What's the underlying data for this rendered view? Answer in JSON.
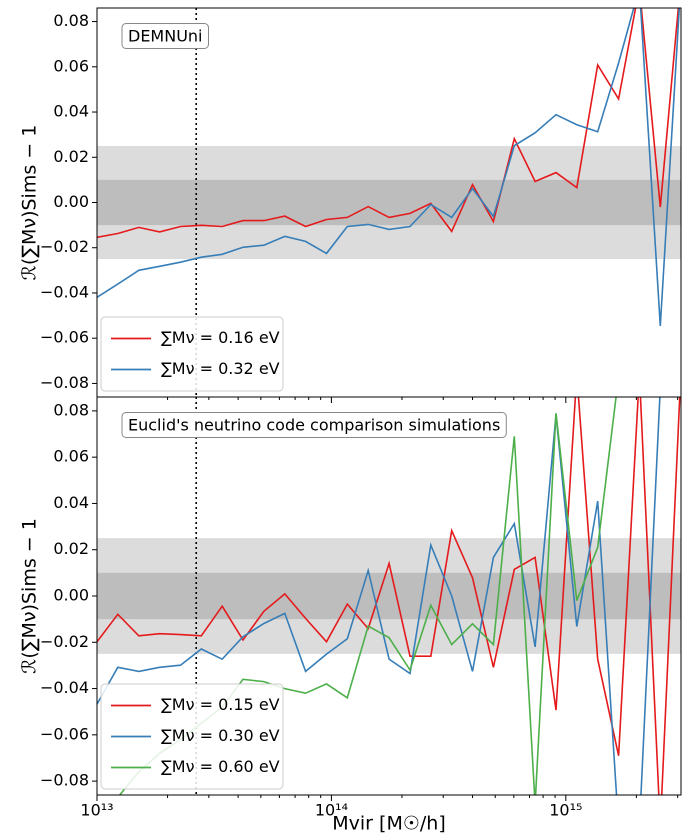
{
  "chart_data": [
    {
      "type": "line",
      "annotation": "DEMNUni",
      "ylabel": "ℛ(∑Mν)Sims − 1",
      "x": [
        10000000000000.0,
        12270000000000.0,
        15070000000000.0,
        18490000000000.0,
        22700000000000.0,
        27860000000000.0,
        34200000000000.0,
        41980000000000.0,
        51520000000000.0,
        63240000000000.0,
        77620000000000.0,
        95280000000000.0,
        116900000000000.0,
        143500000000000.0,
        176200000000000.0,
        216300000000000.0,
        265500000000000.0,
        325800000000000.0,
        399900000000000.0,
        490900000000000.0,
        602600000000000.0,
        739600000000000.0,
        907800000000000.0,
        1114000000000000.0,
        1368000000000000.0,
        1679000000000000.0,
        2061000000000000.0,
        2530000000000000.0,
        3105000000000000.0
      ],
      "series": [
        {
          "name": "∑Mν = 0.16 eV",
          "color": "#e41a1c",
          "values": [
            -0.0154,
            -0.0137,
            -0.011,
            -0.013,
            -0.0106,
            -0.0101,
            -0.0106,
            -0.008,
            -0.008,
            -0.006,
            -0.0106,
            -0.0075,
            -0.0066,
            -0.0018,
            -0.0066,
            -0.0048,
            -0.0004,
            -0.0128,
            0.0079,
            -0.0084,
            0.0282,
            0.0093,
            0.0132,
            0.0066,
            0.0608,
            0.0458,
            0.095,
            -0.002,
            0.1
          ]
        },
        {
          "name": "∑Mν = 0.32 eV",
          "color": "#377eb8",
          "values": [
            -0.0419,
            -0.0361,
            -0.03,
            -0.0282,
            -0.0264,
            -0.0242,
            -0.0229,
            -0.0198,
            -0.0189,
            -0.015,
            -0.0172,
            -0.0225,
            -0.0106,
            -0.0097,
            -0.0119,
            -0.0106,
            -0.0009,
            -0.0066,
            0.0062,
            -0.0062,
            0.0251,
            0.0308,
            0.0388,
            0.0344,
            0.0313,
            0.0617,
            0.095,
            -0.0546,
            0.1
          ]
        }
      ],
      "xlim": [
        10000000000000.0,
        3100000000000000.0
      ],
      "xscale": "log",
      "ylim": [
        -0.086,
        0.086
      ],
      "yticks": [
        {
          "value": -0.08,
          "label": "−0.08"
        },
        {
          "value": -0.06,
          "label": "−0.06"
        },
        {
          "value": -0.04,
          "label": "−0.04"
        },
        {
          "value": -0.02,
          "label": "−0.02"
        },
        {
          "value": 0,
          "label": "0.00"
        },
        {
          "value": 0.02,
          "label": "0.02"
        },
        {
          "value": 0.04,
          "label": "0.04"
        },
        {
          "value": 0.06,
          "label": "0.06"
        },
        {
          "value": 0.08,
          "label": "0.08"
        }
      ],
      "bands": [
        {
          "ylim": [
            -0.025,
            0.025
          ],
          "color": "#dcdcdc"
        },
        {
          "ylim": [
            -0.01,
            0.01
          ],
          "color": "#bdbdbd"
        }
      ],
      "vline": 26500000000000.0,
      "legend": "lower left"
    },
    {
      "type": "line",
      "annotation": "Euclid's neutrino code comparison simulations",
      "ylabel": "ℛ(∑Mν)Sims − 1",
      "xlabel": "Mvir [M☉/h]",
      "x": [
        10000000000000.0,
        12270000000000.0,
        15070000000000.0,
        18490000000000.0,
        22700000000000.0,
        27860000000000.0,
        34200000000000.0,
        41980000000000.0,
        51520000000000.0,
        63240000000000.0,
        77620000000000.0,
        95280000000000.0,
        116900000000000.0,
        143500000000000.0,
        176200000000000.0,
        216300000000000.0,
        265500000000000.0,
        325800000000000.0,
        399900000000000.0,
        490900000000000.0,
        602600000000000.0,
        739600000000000.0,
        907800000000000.0,
        1114000000000000.0,
        1368000000000000.0,
        1679000000000000.0,
        2061000000000000.0,
        2530000000000000.0,
        3105000000000000.0
      ],
      "series": [
        {
          "name": "∑Mν = 0.15 eV",
          "color": "#e41a1c",
          "values": [
            -0.0198,
            -0.0079,
            -0.0172,
            -0.0163,
            -0.0167,
            -0.0172,
            -0.0044,
            -0.019,
            -0.0066,
            0.0009,
            -0.0097,
            -0.0198,
            -0.0035,
            -0.0141,
            0.0141,
            -0.026,
            -0.026,
            0.0282,
            0.0079,
            -0.0308,
            0.0115,
            0.0167,
            -0.0493,
            0.096,
            -0.0273,
            -0.069,
            0.096,
            -0.1,
            0.1
          ]
        },
        {
          "name": "∑Mν = 0.30 eV",
          "color": "#377eb8",
          "values": [
            -0.0467,
            -0.0308,
            -0.0326,
            -0.0308,
            -0.0299,
            -0.0229,
            -0.0273,
            -0.0176,
            -0.0119,
            -0.0075,
            -0.0326,
            -0.0251,
            -0.0185,
            0.011,
            -0.0273,
            -0.0335,
            0.022,
            0.0,
            -0.0326,
            0.0167,
            0.0313,
            -0.022,
            0.0784,
            -0.0132,
            0.041,
            -0.1,
            -0.1,
            0.09,
            0.1
          ]
        },
        {
          "name": "∑Mν = 0.60 eV",
          "color": "#4daf4a",
          "values": [
            -0.1,
            -0.087,
            -0.076,
            -0.068,
            -0.062,
            -0.055,
            -0.048,
            -0.036,
            -0.037,
            -0.04,
            -0.042,
            -0.038,
            -0.044,
            -0.013,
            -0.018,
            -0.032,
            -0.004,
            -0.021,
            -0.012,
            -0.021,
            0.069,
            -0.09,
            0.079,
            -0.002,
            0.021,
            0.095,
            0.095,
            0.095,
            0.1
          ]
        }
      ],
      "xlim": [
        10000000000000.0,
        3100000000000000.0
      ],
      "xscale": "log",
      "xticks": [
        {
          "value": 10000000000000.0,
          "label": "10¹³"
        },
        {
          "value": 100000000000000.0,
          "label": "10¹⁴"
        },
        {
          "value": 1000000000000000.0,
          "label": "10¹⁵"
        }
      ],
      "ylim": [
        -0.086,
        0.086
      ],
      "yticks": [
        {
          "value": -0.08,
          "label": "−0.08"
        },
        {
          "value": -0.06,
          "label": "−0.06"
        },
        {
          "value": -0.04,
          "label": "−0.04"
        },
        {
          "value": -0.02,
          "label": "−0.02"
        },
        {
          "value": 0,
          "label": "0.00"
        },
        {
          "value": 0.02,
          "label": "0.02"
        },
        {
          "value": 0.04,
          "label": "0.04"
        },
        {
          "value": 0.06,
          "label": "0.06"
        },
        {
          "value": 0.08,
          "label": "0.08"
        }
      ],
      "bands": [
        {
          "ylim": [
            -0.025,
            0.025
          ],
          "color": "#dcdcdc"
        },
        {
          "ylim": [
            -0.01,
            0.01
          ],
          "color": "#bdbdbd"
        }
      ],
      "vline": 26500000000000.0,
      "legend": "lower left"
    }
  ]
}
